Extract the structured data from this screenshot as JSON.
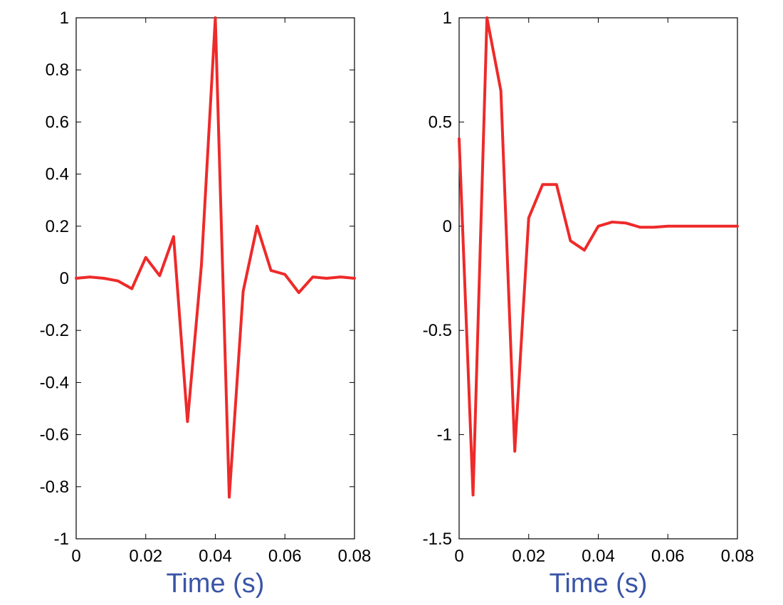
{
  "colors": {
    "line": "#ee2a2a",
    "xlabel": "#3a55a6"
  },
  "chart_data": [
    {
      "type": "line",
      "xlabel": "Time (s)",
      "ylabel": "",
      "xlim": [
        0,
        0.08
      ],
      "ylim": [
        -1,
        1
      ],
      "grid": false,
      "xticks": [
        0,
        0.02,
        0.04,
        0.06,
        0.08
      ],
      "xtick_labels": [
        "0",
        "0.02",
        "0.04",
        "0.06",
        "0.08"
      ],
      "yticks": [
        -1,
        -0.8,
        -0.6,
        -0.4,
        -0.2,
        0,
        0.2,
        0.4,
        0.6,
        0.8,
        1
      ],
      "ytick_labels": [
        "-1",
        "-0.8",
        "-0.6",
        "-0.4",
        "-0.2",
        "0",
        "0.2",
        "0.4",
        "0.6",
        "0.8",
        "1"
      ],
      "series": [
        {
          "x": [
            0,
            0.004,
            0.008,
            0.012,
            0.016,
            0.02,
            0.024,
            0.028,
            0.032,
            0.036,
            0.04,
            0.044,
            0.048,
            0.052,
            0.056,
            0.06,
            0.064,
            0.068,
            0.072,
            0.076,
            0.08
          ],
          "y": [
            0,
            0.005,
            0.0,
            -0.01,
            -0.04,
            0.08,
            0.01,
            0.16,
            -0.55,
            0.05,
            1.0,
            -0.84,
            -0.05,
            0.2,
            0.03,
            0.015,
            -0.055,
            0.005,
            0.0,
            0.005,
            0.0
          ]
        }
      ]
    },
    {
      "type": "line",
      "xlabel": "Time (s)",
      "ylabel": "",
      "xlim": [
        0,
        0.08
      ],
      "ylim": [
        -1.5,
        1
      ],
      "grid": false,
      "xticks": [
        0,
        0.02,
        0.04,
        0.06,
        0.08
      ],
      "xtick_labels": [
        "0",
        "0.02",
        "0.04",
        "0.06",
        "0.08"
      ],
      "yticks": [
        -1.5,
        -1,
        -0.5,
        0,
        0.5,
        1
      ],
      "ytick_labels": [
        "-1.5",
        "-1",
        "-0.5",
        "0",
        "0.5",
        "1"
      ],
      "series": [
        {
          "x": [
            0,
            0.004,
            0.008,
            0.012,
            0.016,
            0.02,
            0.024,
            0.028,
            0.032,
            0.036,
            0.04,
            0.044,
            0.048,
            0.052,
            0.056,
            0.06,
            0.064,
            0.068,
            0.072,
            0.076,
            0.08
          ],
          "y": [
            0.42,
            -1.29,
            1.0,
            0.65,
            -1.08,
            0.04,
            0.2,
            0.2,
            -0.07,
            -0.115,
            0.0,
            0.02,
            0.015,
            -0.005,
            -0.005,
            0.0,
            0.0,
            0.0,
            0.0,
            0.0,
            0.0
          ]
        }
      ]
    }
  ]
}
